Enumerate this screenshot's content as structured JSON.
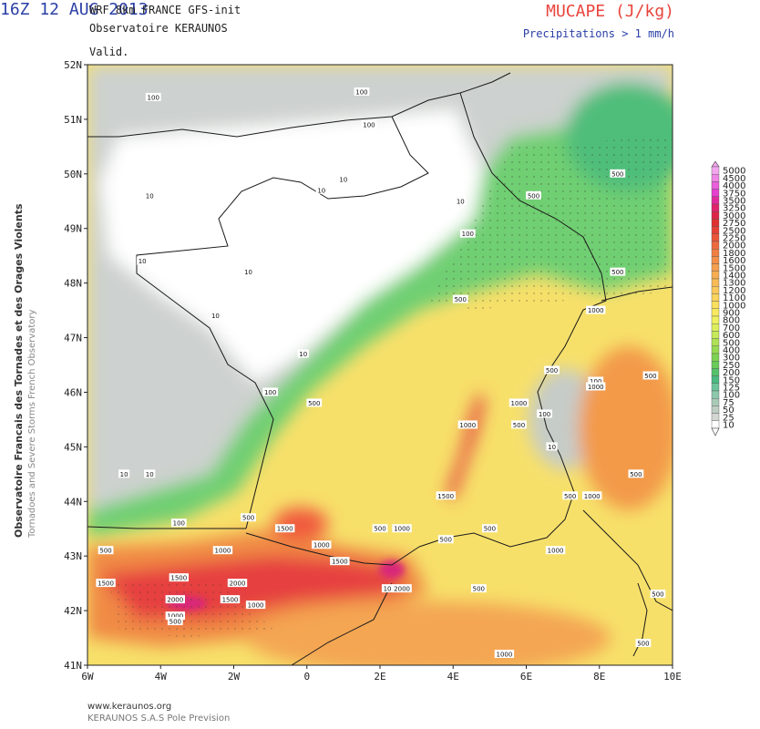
{
  "header": {
    "model": "WRF 8km FRANCE  GFS-init",
    "organization": "Observatoire KERAUNOS",
    "valid_label": "Valid.",
    "valid_time": "16Z 12 AUG 2013",
    "field": "MUCAPE (J/kg)",
    "precip_note": "Precipitations > 1 mm/h"
  },
  "side_text": {
    "line1": "Observatoire Francais des Tornades et des Orages Violents",
    "line2": "Tornadoes and Severe Storms French Observatory"
  },
  "footer": {
    "url": "www.keraunos.org",
    "credit": "KERAUNOS S.A.S Pole Prevision"
  },
  "axes": {
    "lat_labels": [
      "52N",
      "51N",
      "50N",
      "49N",
      "48N",
      "47N",
      "46N",
      "45N",
      "44N",
      "43N",
      "42N",
      "41N"
    ],
    "lon_labels": [
      "6W",
      "4W",
      "2W",
      "0",
      "2E",
      "4E",
      "6E",
      "8E",
      "10E"
    ],
    "lon_range": [
      -6,
      10
    ],
    "lat_range": [
      41,
      52
    ]
  },
  "legend": {
    "levels": [
      "5000",
      "4500",
      "4000",
      "3750",
      "3500",
      "3250",
      "3000",
      "2750",
      "2500",
      "2250",
      "2000",
      "1800",
      "1600",
      "1500",
      "1400",
      "1300",
      "1200",
      "1100",
      "1000",
      "900",
      "800",
      "700",
      "600",
      "500",
      "400",
      "300",
      "250",
      "200",
      "150",
      "125",
      "100",
      "75",
      "50",
      "25",
      "10"
    ],
    "colors": [
      "#f2a6ee",
      "#ef86e6",
      "#ea5fdb",
      "#e63ecf",
      "#e2299c",
      "#e0236a",
      "#de2548",
      "#e03030",
      "#e64036",
      "#ea5538",
      "#ee6a3e",
      "#f17e42",
      "#f38f48",
      "#f5a04e",
      "#f6ad52",
      "#f8bb56",
      "#f9c85a",
      "#fad45d",
      "#fbe060",
      "#f8e95f",
      "#eef05e",
      "#dcef5c",
      "#c6ea58",
      "#aee254",
      "#96da52",
      "#7ed253",
      "#68cb5a",
      "#55c26a",
      "#4aba80",
      "#6ec49a",
      "#8ec8ac",
      "#a8cbb8",
      "#bfcdc4",
      "#d4d6d3",
      "#ffffff"
    ]
  },
  "contour_labels": [
    {
      "text": "100",
      "lon": -4.2,
      "lat": 51.4
    },
    {
      "text": "100",
      "lon": 1.5,
      "lat": 51.5
    },
    {
      "text": "100",
      "lon": 1.7,
      "lat": 50.9
    },
    {
      "text": "500",
      "lon": 8.5,
      "lat": 50.0
    },
    {
      "text": "500",
      "lon": 6.2,
      "lat": 49.6
    },
    {
      "text": "10",
      "lon": -4.3,
      "lat": 49.6
    },
    {
      "text": "10",
      "lon": 0.4,
      "lat": 49.7
    },
    {
      "text": "10",
      "lon": 1.0,
      "lat": 49.9
    },
    {
      "text": "10",
      "lon": 4.2,
      "lat": 49.5
    },
    {
      "text": "100",
      "lon": 4.4,
      "lat": 48.9
    },
    {
      "text": "10",
      "lon": -1.6,
      "lat": 48.2
    },
    {
      "text": "10",
      "lon": -4.5,
      "lat": 48.4
    },
    {
      "text": "500",
      "lon": 8.5,
      "lat": 48.2
    },
    {
      "text": "500",
      "lon": 4.2,
      "lat": 47.7
    },
    {
      "text": "1000",
      "lon": 7.9,
      "lat": 47.5
    },
    {
      "text": "10",
      "lon": -2.5,
      "lat": 47.4
    },
    {
      "text": "10",
      "lon": -0.1,
      "lat": 46.7
    },
    {
      "text": "500",
      "lon": 6.7,
      "lat": 46.4
    },
    {
      "text": "100",
      "lon": 7.9,
      "lat": 46.2
    },
    {
      "text": "1000",
      "lon": 7.9,
      "lat": 46.1
    },
    {
      "text": "500",
      "lon": 9.4,
      "lat": 46.3
    },
    {
      "text": "100",
      "lon": -1.0,
      "lat": 46.0
    },
    {
      "text": "500",
      "lon": 0.2,
      "lat": 45.8
    },
    {
      "text": "1000",
      "lon": 5.8,
      "lat": 45.8
    },
    {
      "text": "100",
      "lon": 6.5,
      "lat": 45.6
    },
    {
      "text": "1000",
      "lon": 4.4,
      "lat": 45.4
    },
    {
      "text": "500",
      "lon": 5.8,
      "lat": 45.4
    },
    {
      "text": "10",
      "lon": 6.7,
      "lat": 45.0
    },
    {
      "text": "500",
      "lon": 9.0,
      "lat": 44.5
    },
    {
      "text": "10",
      "lon": -5.0,
      "lat": 44.5
    },
    {
      "text": "10",
      "lon": -4.3,
      "lat": 44.5
    },
    {
      "text": "1500",
      "lon": 3.8,
      "lat": 44.1
    },
    {
      "text": "500",
      "lon": 7.2,
      "lat": 44.1
    },
    {
      "text": "1000",
      "lon": 7.8,
      "lat": 44.1
    },
    {
      "text": "100",
      "lon": -3.5,
      "lat": 43.6
    },
    {
      "text": "500",
      "lon": -1.6,
      "lat": 43.7
    },
    {
      "text": "1500",
      "lon": -0.6,
      "lat": 43.5
    },
    {
      "text": "500",
      "lon": 2.0,
      "lat": 43.5
    },
    {
      "text": "1000",
      "lon": 2.6,
      "lat": 43.5
    },
    {
      "text": "500",
      "lon": 5.0,
      "lat": 43.5
    },
    {
      "text": "500",
      "lon": 3.8,
      "lat": 43.3
    },
    {
      "text": "1000",
      "lon": 0.4,
      "lat": 43.2
    },
    {
      "text": "500",
      "lon": -5.5,
      "lat": 43.1
    },
    {
      "text": "1000",
      "lon": -2.3,
      "lat": 43.1
    },
    {
      "text": "1500",
      "lon": 0.9,
      "lat": 42.9
    },
    {
      "text": "1000",
      "lon": 6.8,
      "lat": 43.1
    },
    {
      "text": "1500",
      "lon": -5.5,
      "lat": 42.5
    },
    {
      "text": "1500",
      "lon": -3.5,
      "lat": 42.6
    },
    {
      "text": "2000",
      "lon": -1.9,
      "lat": 42.5
    },
    {
      "text": "2000",
      "lon": -3.6,
      "lat": 42.2
    },
    {
      "text": "1500",
      "lon": -2.1,
      "lat": 42.2
    },
    {
      "text": "1000",
      "lon": -1.4,
      "lat": 42.1
    },
    {
      "text": "10",
      "lon": 2.2,
      "lat": 42.4
    },
    {
      "text": "2000",
      "lon": 2.6,
      "lat": 42.4
    },
    {
      "text": "500",
      "lon": 4.7,
      "lat": 42.4
    },
    {
      "text": "500",
      "lon": 9.6,
      "lat": 42.3
    },
    {
      "text": "1000",
      "lon": -3.6,
      "lat": 41.9
    },
    {
      "text": "500",
      "lon": -3.6,
      "lat": 41.8
    },
    {
      "text": "1000",
      "lon": 5.4,
      "lat": 41.2
    },
    {
      "text": "500",
      "lon": 9.2,
      "lat": 41.4
    }
  ]
}
